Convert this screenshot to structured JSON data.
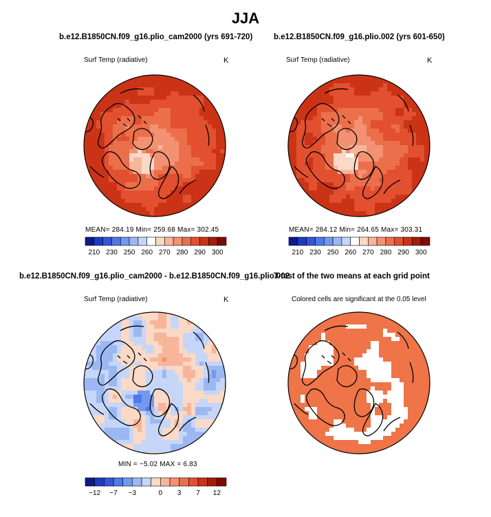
{
  "figure": {
    "title": "JJA"
  },
  "panels": {
    "p1": {
      "title": "b.e12.B1850CN.f09_g16.plio_cam2000 (yrs 691-720)",
      "variable": "Surf Temp (radiative)",
      "units": "K",
      "stats": "MEAN= 284.19   Min= 259.68   Max= 302.45"
    },
    "p2": {
      "title": "b.e12.B1850CN.f09_g16.plio.002 (yrs 601-650)",
      "variable": "Surf Temp (radiative)",
      "units": "K",
      "stats": "MEAN= 284.12   Min= 264.65   Max= 303.31"
    },
    "p3": {
      "title": "b.e12.B1850CN.f09_g16.plio_cam2000 - b.e12.B1850CN.f09_g16.plio.002",
      "variable": "Surf Temp (radiative)",
      "units": "K",
      "stats": "MIN =  −5.02  MAX =    6.83"
    },
    "p4": {
      "title": "T-test of the two means at each grid point",
      "subtitle": "Colored cells are significant at the 0.05 level"
    }
  },
  "chart_data": [
    {
      "type": "heatmap",
      "title": "b.e12.B1850CN.f09_g16.plio_cam2000 (yrs 691-720)",
      "variable": "Surf Temp (radiative)",
      "units": "K",
      "projection": "north polar stereographic",
      "stats": {
        "mean": 284.19,
        "min": 259.68,
        "max": 302.45
      },
      "colorbar": {
        "ticks": [
          210,
          230,
          250,
          260,
          270,
          280,
          290,
          300
        ],
        "colors": [
          "#0c1a8c",
          "#1d3bbf",
          "#3457d9",
          "#4f78e8",
          "#7399ef",
          "#9cb8f3",
          "#c6d6f8",
          "#ffffff",
          "#fad9c6",
          "#f7b59a",
          "#f29272",
          "#ec6f4c",
          "#e2502f",
          "#cb3316",
          "#a41c0a",
          "#7a0d04"
        ]
      }
    },
    {
      "type": "heatmap",
      "title": "b.e12.B1850CN.f09_g16.plio.002 (yrs 601-650)",
      "variable": "Surf Temp (radiative)",
      "units": "K",
      "projection": "north polar stereographic",
      "stats": {
        "mean": 284.12,
        "min": 264.65,
        "max": 303.31
      },
      "colorbar": {
        "ticks": [
          210,
          230,
          250,
          260,
          270,
          280,
          290,
          300
        ],
        "colors": [
          "#0c1a8c",
          "#1d3bbf",
          "#3457d9",
          "#4f78e8",
          "#7399ef",
          "#9cb8f3",
          "#c6d6f8",
          "#ffffff",
          "#fad9c6",
          "#f7b59a",
          "#f29272",
          "#ec6f4c",
          "#e2502f",
          "#cb3316",
          "#a41c0a",
          "#7a0d04"
        ]
      }
    },
    {
      "type": "heatmap",
      "title": "b.e12.B1850CN.f09_g16.plio_cam2000 - b.e12.B1850CN.f09_g16.plio.002",
      "variable": "Surf Temp (radiative)",
      "units": "K",
      "projection": "north polar stereographic",
      "stats": {
        "min": -5.02,
        "max": 6.83
      },
      "colorbar": {
        "ticks": [
          -12,
          -7,
          -3,
          0,
          3,
          7,
          12
        ],
        "colors": [
          "#0c1a8c",
          "#1d3bbf",
          "#3457d9",
          "#4f78e8",
          "#7399ef",
          "#9cb8f3",
          "#c6d6f8",
          "#fad9c6",
          "#f7b59a",
          "#f29272",
          "#ec6f4c",
          "#e2502f",
          "#cb3316",
          "#a41c0a",
          "#7a0d04"
        ]
      }
    },
    {
      "type": "heatmap",
      "title": "T-test of the two means at each grid point",
      "subtitle": "Colored cells are significant at the 0.05 level",
      "projection": "north polar stereographic",
      "significant_color": "#ef7448"
    }
  ]
}
